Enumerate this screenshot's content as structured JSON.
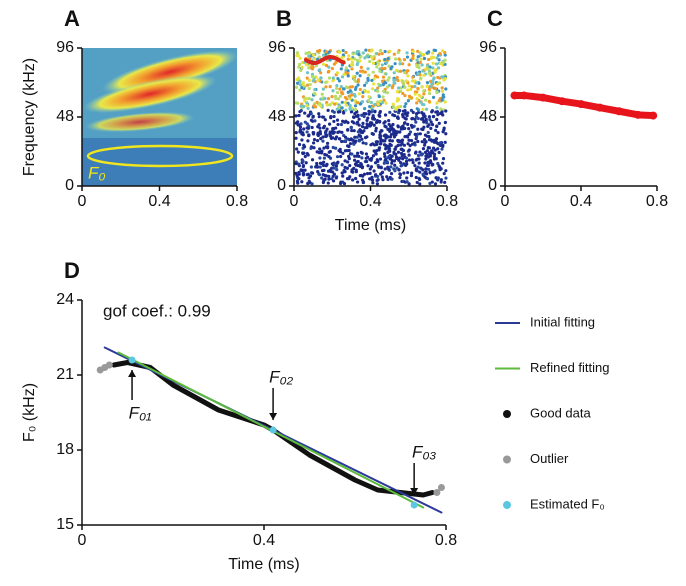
{
  "chart_data": [
    {
      "type": "image",
      "label": "A",
      "ylabel": "Frequency (kHz)",
      "annotation": "F₀",
      "xlim": [
        0,
        0.8
      ],
      "xticks": [
        0,
        0.4,
        0.8
      ],
      "ylim": [
        0,
        96
      ],
      "yticks": [
        0,
        48,
        96
      ]
    },
    {
      "type": "image",
      "label": "B",
      "xlabel": "Time (ms)",
      "xlim": [
        0,
        0.8
      ],
      "xticks": [
        0,
        0.4,
        0.8
      ],
      "ylim": [
        0,
        96
      ],
      "yticks": [
        0,
        48,
        96
      ]
    },
    {
      "type": "line",
      "label": "C",
      "color": "#e8141c",
      "x": [
        0.05,
        0.1,
        0.2,
        0.3,
        0.4,
        0.5,
        0.6,
        0.7,
        0.78
      ],
      "values": [
        63,
        63,
        61.5,
        59,
        57,
        54.5,
        52,
        49.5,
        49
      ],
      "xlim": [
        0,
        0.8
      ],
      "xticks": [
        0,
        0.4,
        0.8
      ],
      "ylim": [
        0,
        96
      ],
      "yticks": [
        0,
        48,
        96
      ]
    },
    {
      "type": "line",
      "label": "D",
      "xlabel": "Time (ms)",
      "ylabel": "F₀ (kHz)",
      "annotations": [
        "gof coef.: 0.99",
        "F₀₁",
        "F₀₂",
        "F₀₃"
      ],
      "xlim": [
        0,
        0.8
      ],
      "xticks": [
        0,
        0.4,
        0.8
      ],
      "ylim": [
        15,
        24
      ],
      "yticks": [
        15,
        18,
        21,
        24
      ],
      "series": [
        {
          "name": "Initial fitting",
          "color": "#2b3a97",
          "style": "line",
          "x": [
            0.05,
            0.79
          ],
          "values": [
            22.1,
            15.5
          ]
        },
        {
          "name": "Refined fitting",
          "color": "#5cba3c",
          "style": "line",
          "x": [
            0.08,
            0.75
          ],
          "values": [
            21.9,
            15.7
          ]
        },
        {
          "name": "Good data",
          "color": "#111111",
          "style": "curve",
          "x": [
            0.07,
            0.1,
            0.15,
            0.2,
            0.3,
            0.4,
            0.42,
            0.5,
            0.6,
            0.65,
            0.7,
            0.75,
            0.77
          ],
          "values": [
            21.4,
            21.5,
            21.3,
            20.6,
            19.6,
            19.0,
            18.8,
            17.8,
            16.8,
            16.4,
            16.3,
            16.2,
            16.3
          ]
        },
        {
          "name": "Outlier",
          "color": "#999999",
          "style": "marker",
          "x": [
            0.04,
            0.05,
            0.06,
            0.78,
            0.79
          ],
          "values": [
            21.2,
            21.3,
            21.4,
            16.3,
            16.5
          ]
        },
        {
          "name": "Estimated F₀",
          "color": "#5bc8e0",
          "style": "marker",
          "x": [
            0.11,
            0.42,
            0.73
          ],
          "values": [
            21.6,
            18.8,
            15.8
          ]
        }
      ]
    }
  ]
}
